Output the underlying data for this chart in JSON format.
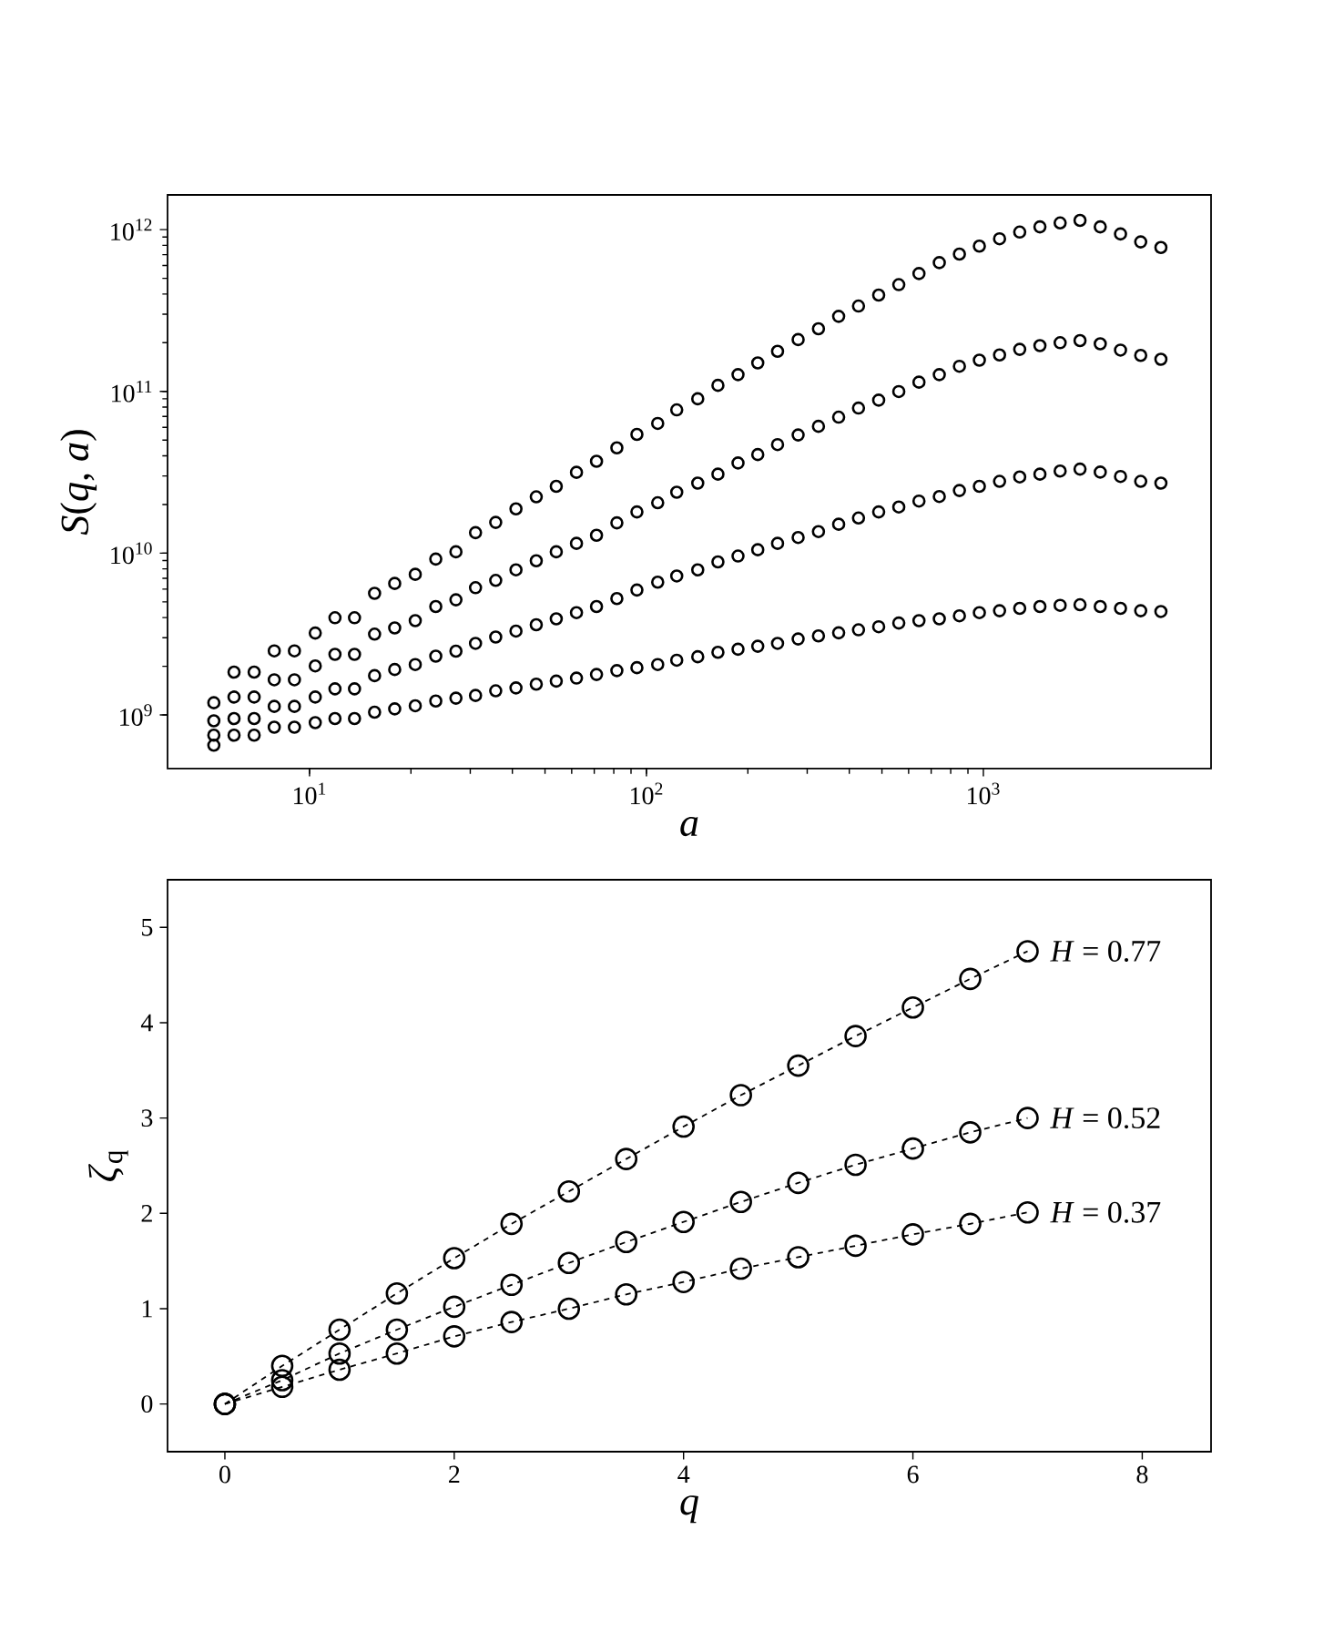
{
  "chart_data": [
    {
      "type": "scatter",
      "xlabel": "*a*",
      "ylabel": "*S*(*q*, *a*)",
      "log": "xy",
      "marker": "circle",
      "grid": false,
      "xlim": [
        3.79,
        4740
      ],
      "ylim": [
        466000000.0,
        1640000000000.0
      ],
      "xticks": [
        {
          "value": 10,
          "label": "10$^{1}$"
        },
        {
          "value": 100,
          "label": "10$^{2}$"
        },
        {
          "value": 1000,
          "label": "10$^{3}$"
        }
      ],
      "yticks": [
        {
          "value": 1000000000.0,
          "label": "10$^{9}$"
        },
        {
          "value": 10000000000.0,
          "label": "10$^{10}$"
        },
        {
          "value": 100000000000.0,
          "label": "10$^{11}$"
        },
        {
          "value": 1000000000000.0,
          "label": "10$^{12}$"
        }
      ],
      "x": [
        5.2,
        5.97,
        6.85,
        7.86,
        9.02,
        10.4,
        11.9,
        13.6,
        15.6,
        17.9,
        20.6,
        23.7,
        27.2,
        31.1,
        35.7,
        41.0,
        47.1,
        54.0,
        62.0,
        71.1,
        81.7,
        93.7,
        108,
        123,
        142,
        163,
        187,
        214,
        245,
        282,
        324,
        372,
        426,
        489,
        561,
        644,
        740,
        849,
        973,
        1117,
        1282,
        1472,
        1690,
        1936,
        2223,
        2553,
        2931,
        3365
      ],
      "series": [
        {
          "color": "#000000",
          "values": [
            1190000000.0,
            1840000000.0,
            1840000000.0,
            2490000000.0,
            2490000000.0,
            3210000000.0,
            3990000000.0,
            3990000000.0,
            5650000000.0,
            6500000000.0,
            7400000000.0,
            9200000000.0,
            10200000000.0,
            13400000000.0,
            15500000000.0,
            18800000000.0,
            22300000000.0,
            25900000000.0,
            31600000000.0,
            37000000000.0,
            44800000000.0,
            54200000000.0,
            63400000000.0,
            76900000000.0,
            90000000000.0,
            109000000000.0,
            127000000000.0,
            150000000000.0,
            177000000000.0,
            209000000000.0,
            244000000000.0,
            291000000000.0,
            337000000000.0,
            394000000000.0,
            457000000000.0,
            535000000000.0,
            625000000000.0,
            706000000000.0,
            791000000000.0,
            878000000000.0,
            966000000000.0,
            1040000000000.0,
            1100000000000.0,
            1140000000000.0,
            1040000000000.0,
            940000000000.0,
            840000000000.0,
            776000000000.0
          ]
        },
        {
          "color": "#000000",
          "values": [
            920000000.0,
            1290000000.0,
            1290000000.0,
            1650000000.0,
            1650000000.0,
            2010000000.0,
            2370000000.0,
            2370000000.0,
            3160000000.0,
            3450000000.0,
            3830000000.0,
            4680000000.0,
            5150000000.0,
            6120000000.0,
            6790000000.0,
            7890000000.0,
            8980000000.0,
            10200000000.0,
            11500000000.0,
            12900000000.0,
            15400000000.0,
            18000000000.0,
            20500000000.0,
            23800000000.0,
            27100000000.0,
            30800000000.0,
            36100000000.0,
            40700000000.0,
            46900000000.0,
            53800000000.0,
            60800000000.0,
            69300000000.0,
            78900000000.0,
            88300000000.0,
            99800000000.0,
            114000000000.0,
            127000000000.0,
            143000000000.0,
            156000000000.0,
            168000000000.0,
            182000000000.0,
            192000000000.0,
            200000000000.0,
            206000000000.0,
            197000000000.0,
            180000000000.0,
            167000000000.0,
            158000000000.0
          ]
        },
        {
          "color": "#000000",
          "values": [
            750000000.0,
            950000000.0,
            950000000.0,
            1130000000.0,
            1130000000.0,
            1290000000.0,
            1450000000.0,
            1450000000.0,
            1750000000.0,
            1910000000.0,
            2050000000.0,
            2310000000.0,
            2480000000.0,
            2770000000.0,
            3030000000.0,
            3300000000.0,
            3610000000.0,
            3930000000.0,
            4290000000.0,
            4680000000.0,
            5240000000.0,
            5920000000.0,
            6620000000.0,
            7230000000.0,
            7890000000.0,
            8830000000.0,
            9600000000.0,
            10500000000.0,
            11500000000.0,
            12500000000.0,
            13600000000.0,
            15100000000.0,
            16500000000.0,
            18000000000.0,
            19300000000.0,
            21000000000.0,
            22400000000.0,
            24400000000.0,
            25900000000.0,
            27800000000.0,
            29600000000.0,
            30800000000.0,
            32200000000.0,
            33100000000.0,
            31700000000.0,
            29800000000.0,
            27800000000.0,
            27100000000.0
          ]
        },
        {
          "color": "#000000",
          "values": [
            650000000.0,
            750000000.0,
            750000000.0,
            840000000.0,
            840000000.0,
            896000000.0,
            950000000.0,
            950000000.0,
            1040000000.0,
            1090000000.0,
            1140000000.0,
            1220000000.0,
            1270000000.0,
            1320000000.0,
            1410000000.0,
            1470000000.0,
            1550000000.0,
            1620000000.0,
            1690000000.0,
            1780000000.0,
            1880000000.0,
            1960000000.0,
            2050000000.0,
            2180000000.0,
            2290000000.0,
            2440000000.0,
            2550000000.0,
            2660000000.0,
            2770000000.0,
            2950000000.0,
            3080000000.0,
            3220000000.0,
            3360000000.0,
            3510000000.0,
            3700000000.0,
            3830000000.0,
            3930000000.0,
            4100000000.0,
            4290000000.0,
            4410000000.0,
            4560000000.0,
            4680000000.0,
            4760000000.0,
            4800000000.0,
            4680000000.0,
            4560000000.0,
            4410000000.0,
            4360000000.0
          ]
        }
      ]
    },
    {
      "type": "line",
      "xlabel": "*q*",
      "ylabel": "*ζ*$_{q}$",
      "marker": "circle",
      "line_style": "dashed",
      "grid": false,
      "xlim": [
        -0.5,
        8.6
      ],
      "ylim": [
        -0.5,
        5.5
      ],
      "xticks": [
        0,
        2,
        4,
        6,
        8
      ],
      "yticks": [
        0,
        1,
        2,
        3,
        4,
        5
      ],
      "x": [
        0,
        0.5,
        1,
        1.5,
        2,
        2.5,
        3,
        3.5,
        4,
        4.5,
        5,
        5.5,
        6,
        6.5,
        7
      ],
      "series": [
        {
          "name": "*H* = 0.77",
          "color": "#000000",
          "values": [
            0,
            0.4,
            0.78,
            1.16,
            1.53,
            1.89,
            2.23,
            2.57,
            2.91,
            3.24,
            3.55,
            3.86,
            4.16,
            4.46,
            4.75
          ]
        },
        {
          "name": "*H* = 0.52",
          "color": "#000000",
          "values": [
            0,
            0.25,
            0.53,
            0.78,
            1.02,
            1.25,
            1.48,
            1.7,
            1.91,
            2.12,
            2.32,
            2.51,
            2.68,
            2.85,
            3.0
          ]
        },
        {
          "name": "*H* = 0.37",
          "color": "#000000",
          "values": [
            0,
            0.18,
            0.36,
            0.53,
            0.71,
            0.86,
            1.0,
            1.15,
            1.28,
            1.42,
            1.54,
            1.66,
            1.78,
            1.89,
            2.01
          ]
        }
      ]
    }
  ]
}
